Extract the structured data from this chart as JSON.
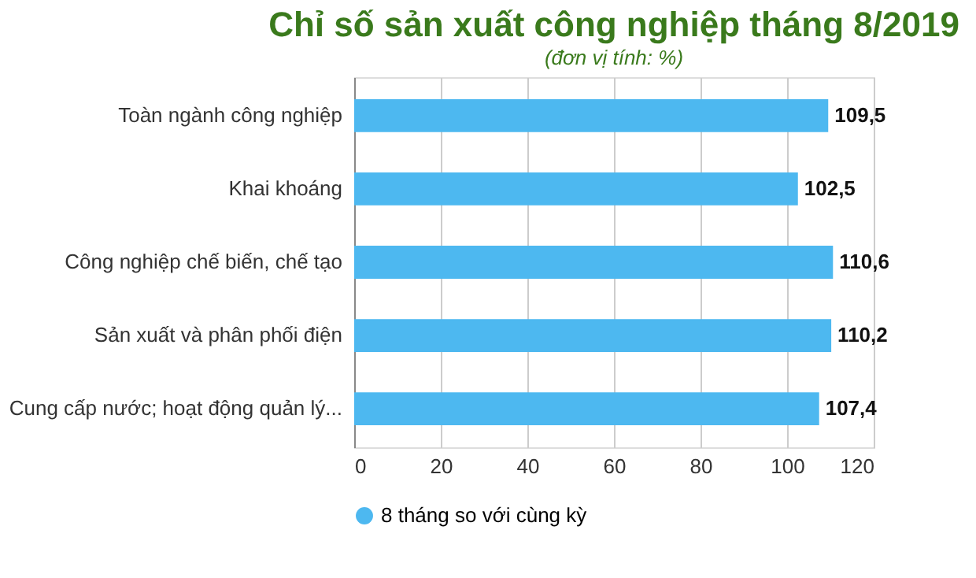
{
  "chart_data": {
    "type": "bar",
    "orientation": "horizontal",
    "title": "Chỉ số sản xuất công nghiệp tháng 8/2019",
    "subtitle": "(đơn vị tính: %)",
    "categories": [
      "Toàn ngành công nghiệp",
      "Khai khoáng",
      "Công nghiệp chế biến, chế tạo",
      "Sản xuất và phân phối điện",
      "Cung cấp nước; hoạt động quản lý..."
    ],
    "series": [
      {
        "name": "8 tháng so với cùng kỳ",
        "color": "#4db8f0",
        "values": [
          109.5,
          102.5,
          110.6,
          110.2,
          107.4
        ],
        "value_labels": [
          "109,5",
          "102,5",
          "110,6",
          "110,2",
          "107,4"
        ]
      }
    ],
    "xlim": [
      0,
      120
    ],
    "xticks": [
      0,
      20,
      40,
      60,
      80,
      100,
      120
    ],
    "grid": "x",
    "legend": "bottom"
  }
}
